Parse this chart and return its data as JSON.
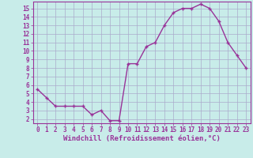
{
  "x": [
    0,
    1,
    2,
    3,
    4,
    5,
    6,
    7,
    8,
    9,
    10,
    11,
    12,
    13,
    14,
    15,
    16,
    17,
    18,
    19,
    20,
    21,
    22,
    23
  ],
  "y": [
    5.5,
    4.5,
    3.5,
    3.5,
    3.5,
    3.5,
    2.5,
    3.0,
    1.8,
    1.8,
    8.5,
    8.5,
    10.5,
    11.0,
    13.0,
    14.5,
    15.0,
    15.0,
    15.5,
    15.0,
    13.5,
    11.0,
    9.5,
    8.0
  ],
  "line_color": "#993399",
  "marker": "+",
  "marker_size": 3,
  "xlabel": "Windchill (Refroidissement éolien,°C)",
  "yticks": [
    2,
    3,
    4,
    5,
    6,
    7,
    8,
    9,
    10,
    11,
    12,
    13,
    14,
    15
  ],
  "xticks": [
    0,
    1,
    2,
    3,
    4,
    5,
    6,
    7,
    8,
    9,
    10,
    11,
    12,
    13,
    14,
    15,
    16,
    17,
    18,
    19,
    20,
    21,
    22,
    23
  ],
  "xlim": [
    -0.5,
    23.5
  ],
  "ylim": [
    1.5,
    15.8
  ],
  "bg_color": "#c8ece9",
  "grid_color": "#aaaacc",
  "line_width": 1.0,
  "tick_color": "#993399",
  "label_color": "#993399",
  "xlabel_fontsize": 6.5,
  "tick_fontsize": 5.5
}
